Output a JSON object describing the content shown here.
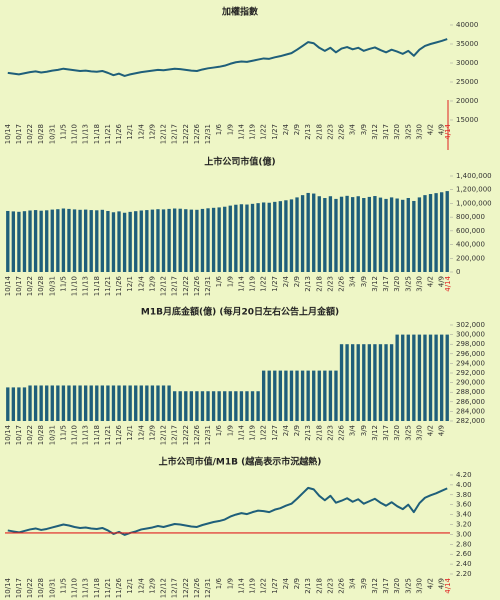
{
  "chart_data": [
    {
      "type": "line",
      "title": "加權指數",
      "color": "#1f5f7a",
      "grid": false,
      "end_label": "4/14",
      "end_color": "#e02020",
      "categories": [
        "10/14",
        null,
        "10/17",
        null,
        "10/22",
        null,
        "10/28",
        null,
        "10/31",
        null,
        "11/5",
        null,
        "11/10",
        null,
        "11/13",
        null,
        "11/18",
        null,
        "11/21",
        null,
        "11/26",
        null,
        "12/1",
        null,
        "12/4",
        null,
        "12/9",
        null,
        "12/12",
        null,
        "12/17",
        null,
        "12/22",
        null,
        "12/26",
        null,
        "12/31",
        null,
        "1/6",
        null,
        "1/9",
        null,
        "1/14",
        null,
        "1/19",
        null,
        "1/22",
        null,
        "1/27",
        null,
        "2/4",
        null,
        "2/9",
        null,
        "2/13",
        null,
        "2/18",
        null,
        "2/23",
        null,
        "2/26",
        null,
        "3/4",
        null,
        "3/9",
        null,
        "3/12",
        null,
        "3/17",
        null,
        "3/20",
        null,
        "3/25",
        null,
        "3/30",
        null,
        "4/2",
        null,
        "4/9",
        null
      ],
      "values": [
        27400,
        27200,
        27000,
        27300,
        27600,
        27800,
        27500,
        27700,
        28000,
        28200,
        28500,
        28300,
        28100,
        27900,
        28000,
        27800,
        27700,
        27900,
        27400,
        26800,
        27200,
        26600,
        27000,
        27300,
        27600,
        27800,
        28000,
        28200,
        28100,
        28300,
        28500,
        28400,
        28200,
        28000,
        27900,
        28300,
        28600,
        28800,
        29000,
        29300,
        29800,
        30200,
        30400,
        30300,
        30600,
        30900,
        31200,
        31100,
        31500,
        31800,
        32200,
        32600,
        33500,
        34500,
        35500,
        35200,
        34000,
        33200,
        34000,
        32800,
        33800,
        34200,
        33600,
        34000,
        33200,
        33700,
        34100,
        33400,
        32800,
        33500,
        33000,
        32400,
        33200,
        31900,
        33500,
        34500,
        35000,
        35400,
        35800,
        36300
      ],
      "ylim": [
        15000,
        40000
      ],
      "yticks": [
        15000,
        20000,
        25000,
        30000,
        35000,
        40000
      ]
    },
    {
      "type": "bar",
      "title": "上市公司市值(億)",
      "color": "#1f5f7a",
      "grid": false,
      "end_label": "4/14",
      "end_color": "#e02020",
      "categories": [
        "10/14",
        null,
        "10/17",
        null,
        "10/22",
        null,
        "10/28",
        null,
        "10/31",
        null,
        "11/5",
        null,
        "11/10",
        null,
        "11/13",
        null,
        "11/18",
        null,
        "11/21",
        null,
        "11/26",
        null,
        "12/1",
        null,
        "12/4",
        null,
        "12/9",
        null,
        "12/12",
        null,
        "12/17",
        null,
        "12/22",
        null,
        "12/26",
        null,
        "12/31",
        null,
        "1/6",
        null,
        "1/9",
        null,
        "1/14",
        null,
        "1/19",
        null,
        "1/22",
        null,
        "1/27",
        null,
        "2/4",
        null,
        "2/9",
        null,
        "2/13",
        null,
        "2/18",
        null,
        "2/23",
        null,
        "2/26",
        null,
        "3/4",
        null,
        "3/9",
        null,
        "3/12",
        null,
        "3/17",
        null,
        "3/20",
        null,
        "3/25",
        null,
        "3/30",
        null,
        "4/2",
        null,
        "4/9",
        null
      ],
      "values": [
        890000,
        884000,
        878000,
        887000,
        897000,
        903000,
        894000,
        900000,
        910000,
        916000,
        926000,
        920000,
        913000,
        907000,
        910000,
        903000,
        900000,
        907000,
        890000,
        871000,
        884000,
        864000,
        877000,
        887000,
        897000,
        903000,
        910000,
        916000,
        913000,
        920000,
        926000,
        923000,
        916000,
        910000,
        907000,
        920000,
        929000,
        936000,
        942000,
        952000,
        968000,
        981000,
        988000,
        984000,
        994000,
        1004000,
        1014000,
        1010000,
        1023000,
        1033000,
        1046000,
        1059000,
        1088000,
        1121000,
        1153000,
        1144000,
        1105000,
        1079000,
        1105000,
        1066000,
        1098000,
        1111000,
        1092000,
        1105000,
        1079000,
        1095000,
        1108000,
        1085000,
        1066000,
        1088000,
        1072000,
        1053000,
        1079000,
        1036000,
        1088000,
        1121000,
        1137000,
        1150000,
        1163000,
        1180000
      ],
      "ylim": [
        0,
        1400000
      ],
      "yticks": [
        0,
        {
          "value": 200000,
          "label": "200,000"
        },
        {
          "value": 400000,
          "label": "400,000"
        },
        {
          "value": 600000,
          "label": "600,000"
        },
        {
          "value": 800000,
          "label": "800,000"
        },
        {
          "value": 1000000,
          "label": "1,000,000"
        },
        {
          "value": 1200000,
          "label": "1,200,000"
        },
        {
          "value": 1400000,
          "label": "1,400,000"
        }
      ]
    },
    {
      "type": "bar",
      "title": "M1B月底金額(億) (每月20日左右公告上月金額)",
      "color": "#1f5f7a",
      "grid": false,
      "categories": [
        "10/14",
        null,
        "10/17",
        null,
        "10/22",
        null,
        "10/28",
        null,
        "10/31",
        null,
        "11/5",
        null,
        "11/10",
        null,
        "11/13",
        null,
        "11/18",
        null,
        "11/21",
        null,
        "11/26",
        null,
        "12/1",
        null,
        "12/4",
        null,
        "12/9",
        null,
        "12/12",
        null,
        "12/17",
        null,
        "12/22",
        null,
        "12/26",
        null,
        "12/31",
        null,
        "1/6",
        null,
        "1/9",
        null,
        "1/14",
        null,
        "1/19",
        null,
        "1/22",
        null,
        "1/27",
        null,
        "2/4",
        null,
        "2/9",
        null,
        "2/13",
        null,
        "2/18",
        null,
        "2/23",
        null,
        "2/26",
        null,
        "3/4",
        null,
        "3/9",
        null,
        "3/12",
        null,
        "3/17",
        null,
        "3/20",
        null,
        "3/25",
        null,
        "3/30",
        null,
        "4/2",
        null,
        "4/9",
        null
      ],
      "values": [
        289000,
        289000,
        289000,
        289000,
        289400,
        289400,
        289400,
        289400,
        289400,
        289400,
        289400,
        289400,
        289400,
        289400,
        289400,
        289400,
        289400,
        289400,
        289400,
        289400,
        289400,
        289400,
        289400,
        289400,
        289400,
        289400,
        289400,
        289400,
        289400,
        289400,
        288200,
        288200,
        288200,
        288200,
        288200,
        288200,
        288200,
        288200,
        288200,
        288200,
        288200,
        288200,
        288200,
        288200,
        288200,
        288200,
        292500,
        292500,
        292500,
        292500,
        292500,
        292500,
        292500,
        292500,
        292500,
        292500,
        292500,
        292500,
        292500,
        292500,
        298000,
        298000,
        298000,
        298000,
        298000,
        298000,
        298000,
        298000,
        298000,
        298000,
        300000,
        300000,
        300000,
        300000,
        300000,
        300000,
        300000,
        300000,
        300000,
        300000
      ],
      "ylim": [
        282000,
        302000
      ],
      "yticks": [
        {
          "value": 282000,
          "label": "282,000"
        },
        {
          "value": 284000,
          "label": "284,000"
        },
        {
          "value": 286000,
          "label": "286,000"
        },
        {
          "value": 288000,
          "label": "288,000"
        },
        {
          "value": 290000,
          "label": "290,000"
        },
        {
          "value": 292000,
          "label": "292,000"
        },
        {
          "value": 294000,
          "label": "294,000"
        },
        {
          "value": 296000,
          "label": "296,000"
        },
        {
          "value": 298000,
          "label": "298,000"
        },
        {
          "value": 300000,
          "label": "300,000"
        },
        {
          "value": 302000,
          "label": "302,000"
        }
      ]
    },
    {
      "type": "line",
      "title": "上市公司市值/M1B (越高表示市況越熱)",
      "color": "#1f5f7a",
      "grid": false,
      "end_label": "4/14",
      "end_color": "#e02020",
      "ref_line": 3.03,
      "categories": [
        "10/14",
        null,
        "10/17",
        null,
        "10/22",
        null,
        "10/28",
        null,
        "10/31",
        null,
        "11/5",
        null,
        "11/10",
        null,
        "11/13",
        null,
        "11/18",
        null,
        "11/21",
        null,
        "11/26",
        null,
        "12/1",
        null,
        "12/4",
        null,
        "12/9",
        null,
        "12/12",
        null,
        "12/17",
        null,
        "12/22",
        null,
        "12/26",
        null,
        "12/31",
        null,
        "1/6",
        null,
        "1/9",
        null,
        "1/14",
        null,
        "1/19",
        null,
        "1/22",
        null,
        "1/27",
        null,
        "2/4",
        null,
        "2/9",
        null,
        "2/13",
        null,
        "2/18",
        null,
        "2/23",
        null,
        "2/26",
        null,
        "3/4",
        null,
        "3/9",
        null,
        "3/12",
        null,
        "3/17",
        null,
        "3/20",
        null,
        "3/25",
        null,
        "3/30",
        null,
        "4/2",
        null,
        "4/9",
        null
      ],
      "values": [
        3.08,
        3.06,
        3.04,
        3.07,
        3.1,
        3.12,
        3.09,
        3.11,
        3.14,
        3.17,
        3.2,
        3.18,
        3.15,
        3.13,
        3.14,
        3.12,
        3.11,
        3.13,
        3.08,
        3.01,
        3.05,
        2.99,
        3.03,
        3.06,
        3.1,
        3.12,
        3.14,
        3.17,
        3.15,
        3.18,
        3.21,
        3.2,
        3.18,
        3.16,
        3.15,
        3.19,
        3.22,
        3.25,
        3.27,
        3.3,
        3.36,
        3.4,
        3.43,
        3.41,
        3.45,
        3.48,
        3.47,
        3.45,
        3.5,
        3.53,
        3.58,
        3.62,
        3.72,
        3.83,
        3.94,
        3.91,
        3.78,
        3.69,
        3.78,
        3.64,
        3.68,
        3.73,
        3.66,
        3.71,
        3.62,
        3.67,
        3.72,
        3.64,
        3.58,
        3.65,
        3.57,
        3.51,
        3.6,
        3.45,
        3.63,
        3.74,
        3.79,
        3.83,
        3.88,
        3.93
      ],
      "ylim": [
        2.2,
        4.2
      ],
      "yticks": [
        {
          "value": 2.2,
          "label": "2.20"
        },
        {
          "value": 2.4,
          "label": "2.40"
        },
        {
          "value": 2.6,
          "label": "2.60"
        },
        {
          "value": 2.8,
          "label": "2.80"
        },
        {
          "value": 3,
          "label": "3.00"
        },
        {
          "value": 3.2,
          "label": "3.20"
        },
        {
          "value": 3.4,
          "label": "3.40"
        },
        {
          "value": 3.6,
          "label": "3.60"
        },
        {
          "value": 3.8,
          "label": "3.80"
        },
        {
          "value": 4,
          "label": "4.00"
        },
        {
          "value": 4.2,
          "label": "4.20"
        }
      ]
    }
  ]
}
